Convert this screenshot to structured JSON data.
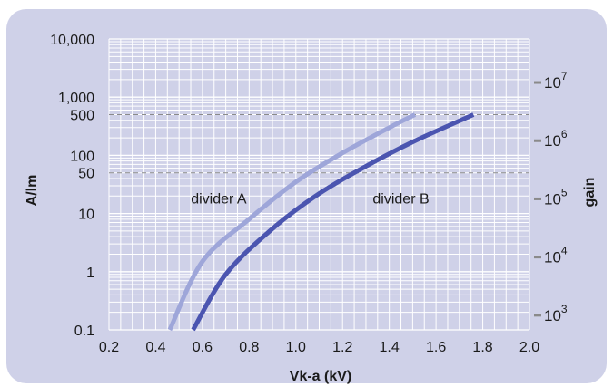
{
  "chart_data": {
    "type": "line",
    "title": "",
    "xlabel": "Vk-a (kV)",
    "ylabel": "A/lm",
    "y2label": "gain",
    "xlim": [
      0.2,
      2.0
    ],
    "ylim": [
      0.1,
      10000
    ],
    "y_scale": "log",
    "y2_scale": "log",
    "y2lim": [
      560,
      56000000
    ],
    "grid": true,
    "x_ticks": [
      "0.2",
      "0.4",
      "0.6",
      "0.8",
      "1.0",
      "1.2",
      "1.4",
      "1.6",
      "1.8",
      "2.0"
    ],
    "x_tick_values": [
      0.2,
      0.4,
      0.6,
      0.8,
      1.0,
      1.2,
      1.4,
      1.6,
      1.8,
      2.0
    ],
    "y_ticks": [
      {
        "label": "10,000",
        "value": 10000
      },
      {
        "label": "1,000",
        "value": 1000
      },
      {
        "label": "500",
        "value": 500
      },
      {
        "label": "100",
        "value": 100
      },
      {
        "label": "50",
        "value": 50
      },
      {
        "label": "10",
        "value": 10
      },
      {
        "label": "1",
        "value": 1
      },
      {
        "label": "0.1",
        "value": 0.1
      }
    ],
    "y2_ticks": [
      {
        "base": "10",
        "exp": "3",
        "value": 1000
      },
      {
        "base": "10",
        "exp": "4",
        "value": 10000
      },
      {
        "base": "10",
        "exp": "5",
        "value": 100000
      },
      {
        "base": "10",
        "exp": "6",
        "value": 1000000
      },
      {
        "base": "10",
        "exp": "7",
        "value": 10000000
      }
    ],
    "reference_lines": [
      500,
      50
    ],
    "series": [
      {
        "name": "divider A",
        "color": "#9ea6d9",
        "x": [
          0.46,
          0.6,
          0.8,
          1.0,
          1.2,
          1.4,
          1.51
        ],
        "y": [
          0.1,
          1.5,
          8,
          35,
          110,
          300,
          500
        ]
      },
      {
        "name": "divider B",
        "color": "#4b55b0",
        "x": [
          0.56,
          0.7,
          0.9,
          1.1,
          1.3,
          1.5,
          1.76
        ],
        "y": [
          0.1,
          0.9,
          5.5,
          22,
          65,
          170,
          500
        ]
      }
    ],
    "annotations": [
      {
        "text": "divider A",
        "x": 0.67,
        "y": 15
      },
      {
        "text": "divider B",
        "x": 1.45,
        "y": 15
      }
    ]
  },
  "colors": {
    "panel": "#cfd1e8",
    "plot_background": "#cfd1e8",
    "grid": "#ffffff",
    "reference_line": "#8a8a8a",
    "right_tick": "#8a8a8a"
  }
}
